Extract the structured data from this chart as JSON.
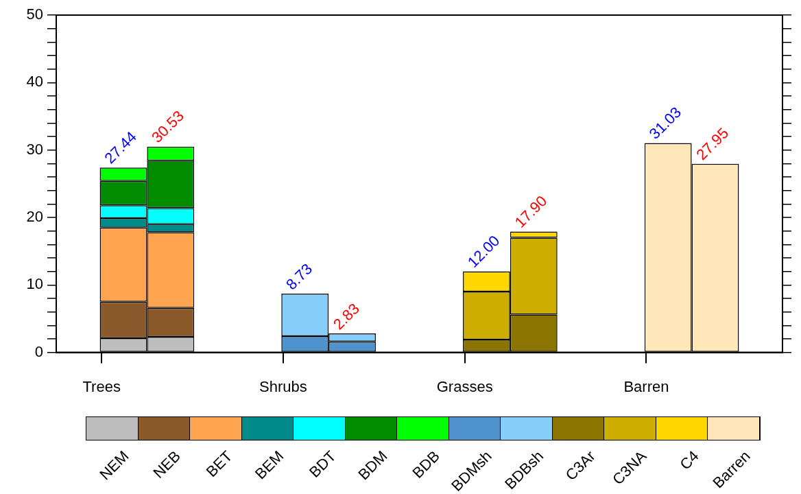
{
  "chart_data": {
    "type": "bar",
    "stacked": true,
    "categories": [
      "Trees",
      null,
      "Shrubs",
      null,
      "Grasses",
      null,
      "Barren",
      null
    ],
    "ylim": [
      0,
      50
    ],
    "yticks": [
      0,
      {
        "value": 2,
        "label": null
      },
      {
        "value": 4,
        "label": null
      },
      {
        "value": 6,
        "label": null
      },
      {
        "value": 8,
        "label": null
      },
      10,
      {
        "value": 12,
        "label": null
      },
      {
        "value": 14,
        "label": null
      },
      {
        "value": 16,
        "label": null
      },
      {
        "value": 18,
        "label": null
      },
      20,
      {
        "value": 22,
        "label": null
      },
      {
        "value": 24,
        "label": null
      },
      {
        "value": 26,
        "label": null
      },
      {
        "value": 28,
        "label": null
      },
      30,
      {
        "value": 32,
        "label": null
      },
      {
        "value": 34,
        "label": null
      },
      {
        "value": 36,
        "label": null
      },
      {
        "value": 38,
        "label": null
      },
      40,
      {
        "value": 42,
        "label": null
      },
      {
        "value": 44,
        "label": null
      },
      {
        "value": 46,
        "label": null
      },
      {
        "value": 48,
        "label": null
      },
      50
    ],
    "series": [
      {
        "name": "NEM",
        "color": "#bebebe",
        "values": [
          2.1,
          2.3,
          null,
          null,
          null,
          null,
          null,
          null
        ]
      },
      {
        "name": "NEB",
        "color": "#8b5a2b",
        "values": [
          5.4,
          4.3,
          null,
          null,
          null,
          null,
          null,
          null
        ]
      },
      {
        "name": "BET",
        "color": "#ffa54f",
        "values": [
          11.0,
          11.2,
          null,
          null,
          null,
          null,
          null,
          null
        ]
      },
      {
        "name": "BEM",
        "color": "#008b8b",
        "values": [
          1.4,
          1.2,
          null,
          null,
          null,
          null,
          null,
          null
        ]
      },
      {
        "name": "BDT",
        "color": "#00ffff",
        "values": [
          1.9,
          2.4,
          null,
          null,
          null,
          null,
          null,
          null
        ]
      },
      {
        "name": "BDM",
        "color": "#008b00",
        "values": [
          3.6,
          7.0,
          null,
          null,
          null,
          null,
          null,
          null
        ]
      },
      {
        "name": "BDB",
        "color": "#00ff00",
        "values": [
          2.0,
          2.1,
          null,
          null,
          null,
          null,
          null,
          null
        ]
      },
      {
        "name": "BDMsh",
        "color": "#4f94cd",
        "values": [
          null,
          null,
          2.4,
          1.6,
          null,
          null,
          null,
          null
        ]
      },
      {
        "name": "BDBsh",
        "color": "#87cefa",
        "values": [
          null,
          null,
          6.3,
          1.2,
          null,
          null,
          null,
          null
        ]
      },
      {
        "name": "C3Ar",
        "color": "#8b7500",
        "values": [
          null,
          null,
          null,
          null,
          1.9,
          5.6,
          null,
          null
        ]
      },
      {
        "name": "C3NA",
        "color": "#cdad00",
        "values": [
          null,
          null,
          null,
          null,
          7.1,
          11.4,
          null,
          null
        ]
      },
      {
        "name": "C4",
        "color": "#ffd700",
        "values": [
          null,
          null,
          null,
          null,
          3.0,
          0.9,
          null,
          null
        ]
      },
      {
        "name": "Barren",
        "color": "#ffe7ba",
        "values": [
          null,
          null,
          null,
          null,
          null,
          null,
          31.03,
          27.95
        ]
      }
    ],
    "totals": [
      "27.44",
      "30.53",
      "8.73",
      "2.83",
      "12.00",
      "17.90",
      "31.03",
      "27.95"
    ],
    "legend": "bottom",
    "grid": false
  }
}
